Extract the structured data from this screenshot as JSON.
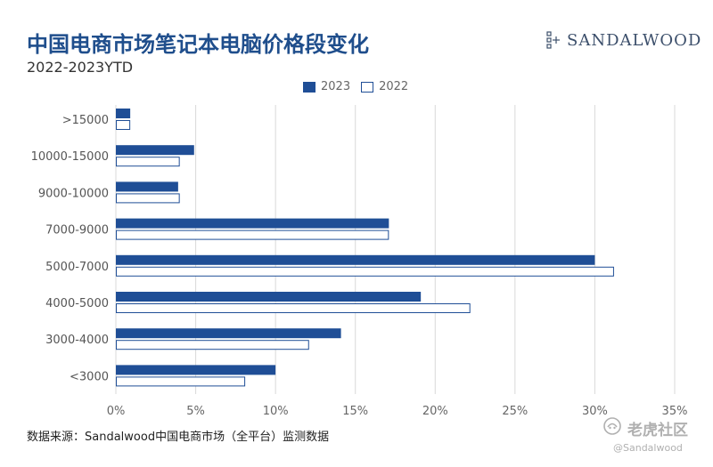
{
  "chart_data": {
    "type": "bar",
    "orientation": "horizontal",
    "title": "中国电商市场笔记本电脑价格段变化",
    "subtitle": "2022-2023YTD",
    "categories": [
      ">15000",
      "10000-15000",
      "9000-10000",
      "7000-9000",
      "5000-7000",
      "4000-5000",
      "3000-4000",
      "<3000"
    ],
    "series": [
      {
        "name": "2023",
        "values": [
          0.9,
          4.9,
          3.9,
          17.1,
          30.0,
          19.1,
          14.1,
          10.0
        ]
      },
      {
        "name": "2022",
        "values": [
          0.9,
          4.0,
          4.0,
          17.1,
          31.2,
          22.2,
          12.1,
          8.1
        ]
      }
    ],
    "x_ticks": [
      "0%",
      "5%",
      "10%",
      "15%",
      "20%",
      "25%",
      "30%",
      "35%"
    ],
    "xlim": [
      0,
      35
    ],
    "xlabel": "",
    "ylabel": "",
    "grid": "vertical",
    "legend_position": "top-center"
  },
  "colors": {
    "title": "#1f4e8c",
    "bar_2023": "#1f4e96",
    "bar_2022_stroke": "#1f4e96",
    "grid": "#d9d9d9",
    "watermark": "#b0b0b0"
  },
  "brand": {
    "name": "SANDALWOOD",
    "icon": "sandalwood-logo-icon"
  },
  "source": "数据来源：Sandalwood中国电商市场（全平台）监测数据",
  "watermark": {
    "name": "老虎社区",
    "handle": "@Sandalwood",
    "icon": "tiger-community-icon"
  }
}
